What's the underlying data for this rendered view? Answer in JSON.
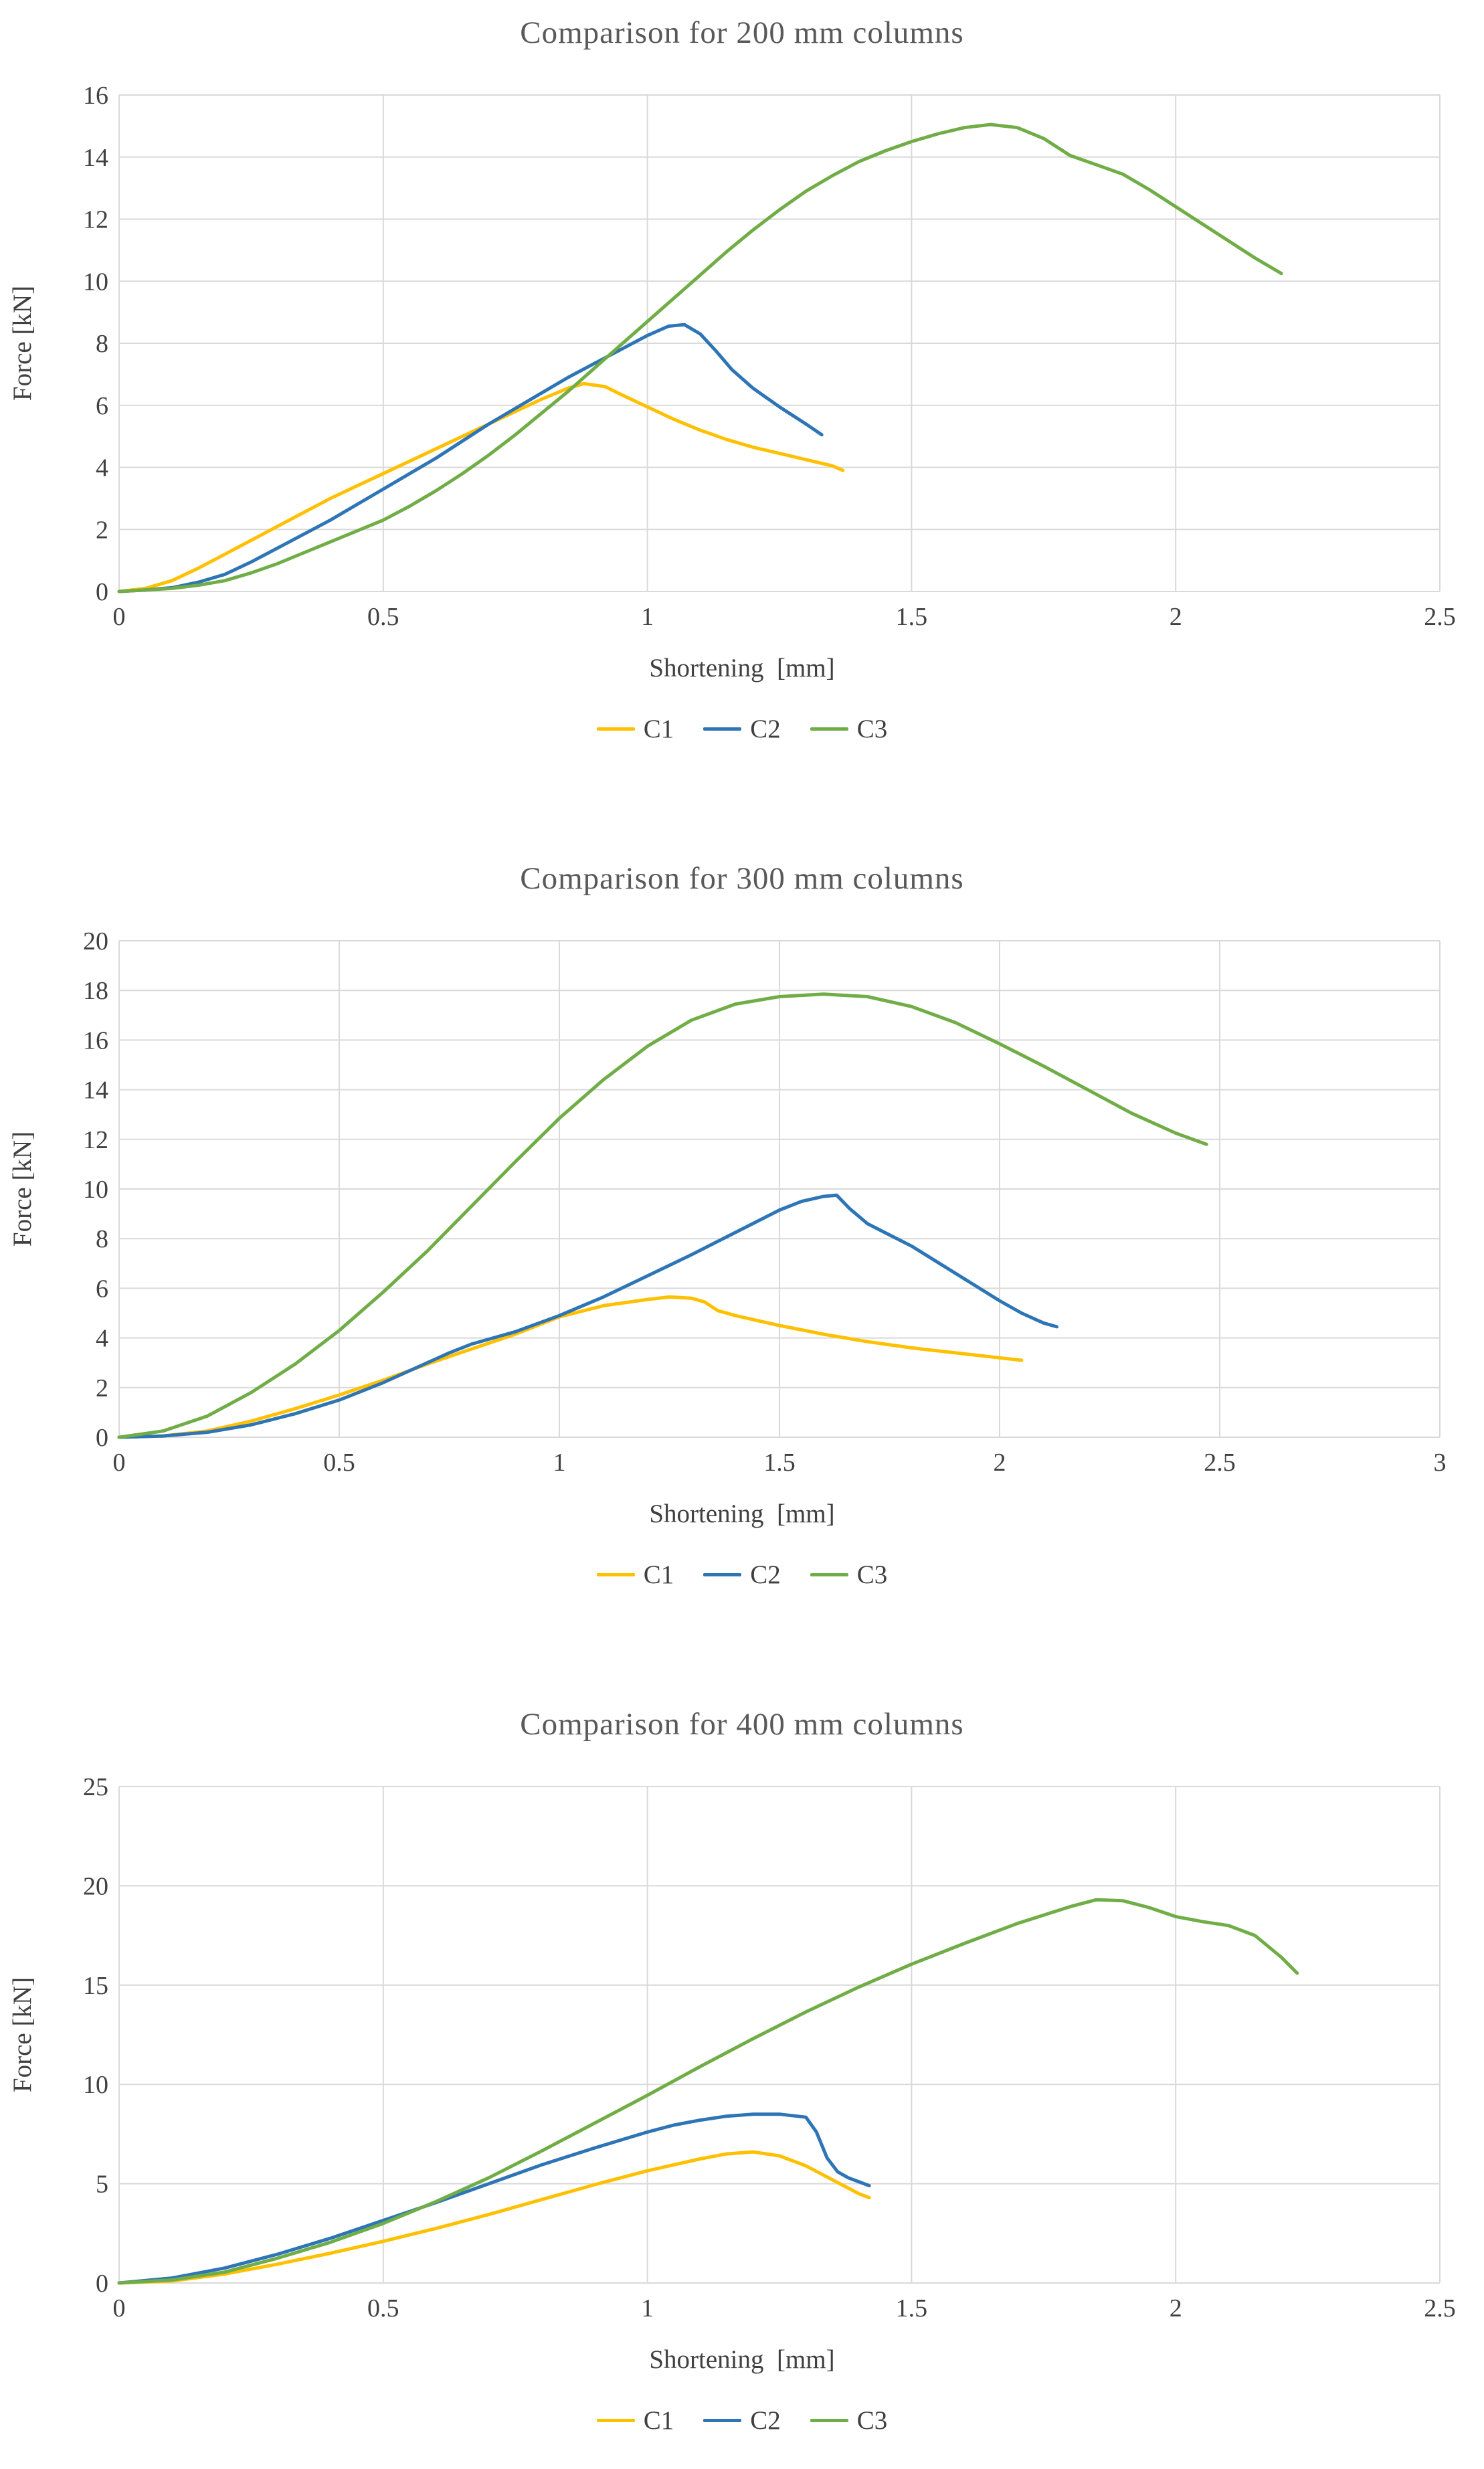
{
  "colors": {
    "grid": "#D9D9D9",
    "title_text": "#595959",
    "axis_text": "#404040",
    "c1": "#FFC000",
    "c2": "#2E75B6",
    "c3": "#70AD47"
  },
  "chart_data": [
    {
      "type": "line",
      "title": "Comparison for 200 mm columns",
      "xlabel": "Shortening  [mm]",
      "ylabel": "Force [kN]",
      "xlim": [
        0,
        2.5
      ],
      "ylim": [
        0,
        16
      ],
      "xticks": [
        0,
        0.5,
        1,
        1.5,
        2,
        2.5
      ],
      "yticks": [
        0,
        2,
        4,
        6,
        8,
        10,
        12,
        14,
        16
      ],
      "grid": true,
      "legend_position": "bottom",
      "series": [
        {
          "name": "C1",
          "color": "#FFC000",
          "points": [
            [
              0,
              0
            ],
            [
              0.05,
              0.1
            ],
            [
              0.1,
              0.35
            ],
            [
              0.15,
              0.75
            ],
            [
              0.2,
              1.2
            ],
            [
              0.25,
              1.65
            ],
            [
              0.3,
              2.1
            ],
            [
              0.35,
              2.55
            ],
            [
              0.4,
              3
            ],
            [
              0.45,
              3.4
            ],
            [
              0.5,
              3.8
            ],
            [
              0.55,
              4.2
            ],
            [
              0.6,
              4.6
            ],
            [
              0.65,
              5
            ],
            [
              0.7,
              5.4
            ],
            [
              0.75,
              5.8
            ],
            [
              0.8,
              6.2
            ],
            [
              0.85,
              6.55
            ],
            [
              0.88,
              6.7
            ],
            [
              0.92,
              6.6
            ],
            [
              0.95,
              6.35
            ],
            [
              1,
              5.95
            ],
            [
              1.05,
              5.55
            ],
            [
              1.1,
              5.2
            ],
            [
              1.15,
              4.9
            ],
            [
              1.2,
              4.65
            ],
            [
              1.25,
              4.45
            ],
            [
              1.3,
              4.25
            ],
            [
              1.35,
              4.05
            ],
            [
              1.37,
              3.9
            ]
          ]
        },
        {
          "name": "C2",
          "color": "#2E75B6",
          "points": [
            [
              0,
              0
            ],
            [
              0.05,
              0.05
            ],
            [
              0.1,
              0.12
            ],
            [
              0.15,
              0.3
            ],
            [
              0.2,
              0.55
            ],
            [
              0.25,
              0.95
            ],
            [
              0.3,
              1.4
            ],
            [
              0.35,
              1.85
            ],
            [
              0.4,
              2.3
            ],
            [
              0.45,
              2.8
            ],
            [
              0.5,
              3.3
            ],
            [
              0.55,
              3.8
            ],
            [
              0.6,
              4.3
            ],
            [
              0.65,
              4.85
            ],
            [
              0.7,
              5.4
            ],
            [
              0.75,
              5.9
            ],
            [
              0.8,
              6.4
            ],
            [
              0.85,
              6.9
            ],
            [
              0.9,
              7.35
            ],
            [
              0.95,
              7.8
            ],
            [
              1,
              8.25
            ],
            [
              1.04,
              8.55
            ],
            [
              1.07,
              8.6
            ],
            [
              1.1,
              8.3
            ],
            [
              1.13,
              7.75
            ],
            [
              1.16,
              7.15
            ],
            [
              1.2,
              6.55
            ],
            [
              1.25,
              5.95
            ],
            [
              1.3,
              5.4
            ],
            [
              1.33,
              5.05
            ]
          ]
        },
        {
          "name": "C3",
          "color": "#70AD47",
          "points": [
            [
              0,
              0
            ],
            [
              0.1,
              0.1
            ],
            [
              0.15,
              0.2
            ],
            [
              0.2,
              0.35
            ],
            [
              0.25,
              0.6
            ],
            [
              0.3,
              0.9
            ],
            [
              0.35,
              1.25
            ],
            [
              0.4,
              1.6
            ],
            [
              0.45,
              1.95
            ],
            [
              0.5,
              2.3
            ],
            [
              0.55,
              2.75
            ],
            [
              0.6,
              3.25
            ],
            [
              0.65,
              3.8
            ],
            [
              0.7,
              4.4
            ],
            [
              0.75,
              5.05
            ],
            [
              0.8,
              5.75
            ],
            [
              0.85,
              6.45
            ],
            [
              0.9,
              7.2
            ],
            [
              0.95,
              7.95
            ],
            [
              1,
              8.7
            ],
            [
              1.05,
              9.45
            ],
            [
              1.1,
              10.2
            ],
            [
              1.15,
              10.95
            ],
            [
              1.2,
              11.65
            ],
            [
              1.25,
              12.3
            ],
            [
              1.3,
              12.9
            ],
            [
              1.35,
              13.4
            ],
            [
              1.4,
              13.85
            ],
            [
              1.45,
              14.2
            ],
            [
              1.5,
              14.5
            ],
            [
              1.55,
              14.75
            ],
            [
              1.6,
              14.95
            ],
            [
              1.65,
              15.05
            ],
            [
              1.7,
              14.95
            ],
            [
              1.75,
              14.6
            ],
            [
              1.8,
              14.05
            ],
            [
              1.85,
              13.75
            ],
            [
              1.9,
              13.45
            ],
            [
              1.95,
              12.95
            ],
            [
              2,
              12.4
            ],
            [
              2.05,
              11.85
            ],
            [
              2.1,
              11.3
            ],
            [
              2.15,
              10.75
            ],
            [
              2.2,
              10.25
            ]
          ]
        }
      ]
    },
    {
      "type": "line",
      "title": "Comparison for 300 mm columns",
      "xlabel": "Shortening  [mm]",
      "ylabel": "Force [kN]",
      "xlim": [
        0,
        3
      ],
      "ylim": [
        0,
        20
      ],
      "xticks": [
        0,
        0.5,
        1,
        1.5,
        2,
        2.5,
        3
      ],
      "yticks": [
        0,
        2,
        4,
        6,
        8,
        10,
        12,
        14,
        16,
        18,
        20
      ],
      "grid": true,
      "legend_position": "bottom",
      "series": [
        {
          "name": "C1",
          "color": "#FFC000",
          "points": [
            [
              0,
              0
            ],
            [
              0.1,
              0.05
            ],
            [
              0.2,
              0.25
            ],
            [
              0.3,
              0.65
            ],
            [
              0.4,
              1.15
            ],
            [
              0.5,
              1.7
            ],
            [
              0.6,
              2.3
            ],
            [
              0.7,
              2.95
            ],
            [
              0.8,
              3.55
            ],
            [
              0.9,
              4.15
            ],
            [
              1,
              4.85
            ],
            [
              1.1,
              5.3
            ],
            [
              1.2,
              5.55
            ],
            [
              1.25,
              5.65
            ],
            [
              1.3,
              5.6
            ],
            [
              1.33,
              5.45
            ],
            [
              1.36,
              5.1
            ],
            [
              1.4,
              4.9
            ],
            [
              1.5,
              4.5
            ],
            [
              1.6,
              4.15
            ],
            [
              1.7,
              3.85
            ],
            [
              1.8,
              3.6
            ],
            [
              1.9,
              3.4
            ],
            [
              2,
              3.2
            ],
            [
              2.05,
              3.1
            ]
          ]
        },
        {
          "name": "C2",
          "color": "#2E75B6",
          "points": [
            [
              0,
              0
            ],
            [
              0.1,
              0.05
            ],
            [
              0.2,
              0.2
            ],
            [
              0.3,
              0.5
            ],
            [
              0.4,
              0.95
            ],
            [
              0.5,
              1.5
            ],
            [
              0.6,
              2.2
            ],
            [
              0.7,
              3
            ],
            [
              0.75,
              3.4
            ],
            [
              0.8,
              3.75
            ],
            [
              0.9,
              4.25
            ],
            [
              1,
              4.9
            ],
            [
              1.1,
              5.65
            ],
            [
              1.2,
              6.5
            ],
            [
              1.3,
              7.35
            ],
            [
              1.4,
              8.25
            ],
            [
              1.5,
              9.15
            ],
            [
              1.55,
              9.5
            ],
            [
              1.6,
              9.7
            ],
            [
              1.63,
              9.75
            ],
            [
              1.66,
              9.2
            ],
            [
              1.7,
              8.6
            ],
            [
              1.75,
              8.15
            ],
            [
              1.8,
              7.7
            ],
            [
              1.9,
              6.6
            ],
            [
              2,
              5.5
            ],
            [
              2.05,
              5
            ],
            [
              2.1,
              4.6
            ],
            [
              2.13,
              4.45
            ]
          ]
        },
        {
          "name": "C3",
          "color": "#70AD47",
          "points": [
            [
              0,
              0
            ],
            [
              0.1,
              0.25
            ],
            [
              0.2,
              0.85
            ],
            [
              0.3,
              1.8
            ],
            [
              0.4,
              2.95
            ],
            [
              0.5,
              4.3
            ],
            [
              0.6,
              5.85
            ],
            [
              0.7,
              7.5
            ],
            [
              0.8,
              9.3
            ],
            [
              0.9,
              11.1
            ],
            [
              1,
              12.85
            ],
            [
              1.1,
              14.4
            ],
            [
              1.2,
              15.75
            ],
            [
              1.3,
              16.8
            ],
            [
              1.4,
              17.45
            ],
            [
              1.5,
              17.75
            ],
            [
              1.6,
              17.85
            ],
            [
              1.7,
              17.75
            ],
            [
              1.8,
              17.35
            ],
            [
              1.9,
              16.7
            ],
            [
              2,
              15.85
            ],
            [
              2.1,
              14.95
            ],
            [
              2.2,
              14
            ],
            [
              2.3,
              13.05
            ],
            [
              2.4,
              12.25
            ],
            [
              2.47,
              11.8
            ]
          ]
        }
      ]
    },
    {
      "type": "line",
      "title": "Comparison for 400 mm columns",
      "xlabel": "Shortening  [mm]",
      "ylabel": "Force [kN]",
      "xlim": [
        0,
        2.5
      ],
      "ylim": [
        0,
        25
      ],
      "xticks": [
        0,
        0.5,
        1,
        1.5,
        2,
        2.5
      ],
      "yticks": [
        0,
        5,
        10,
        15,
        20,
        25
      ],
      "grid": true,
      "legend_position": "bottom",
      "series": [
        {
          "name": "C1",
          "color": "#FFC000",
          "points": [
            [
              0,
              0
            ],
            [
              0.1,
              0.1
            ],
            [
              0.2,
              0.45
            ],
            [
              0.3,
              0.95
            ],
            [
              0.4,
              1.5
            ],
            [
              0.5,
              2.1
            ],
            [
              0.6,
              2.75
            ],
            [
              0.7,
              3.45
            ],
            [
              0.8,
              4.2
            ],
            [
              0.9,
              4.95
            ],
            [
              1,
              5.65
            ],
            [
              1.1,
              6.25
            ],
            [
              1.15,
              6.5
            ],
            [
              1.2,
              6.6
            ],
            [
              1.25,
              6.4
            ],
            [
              1.3,
              5.9
            ],
            [
              1.35,
              5.2
            ],
            [
              1.4,
              4.5
            ],
            [
              1.42,
              4.3
            ]
          ]
        },
        {
          "name": "C2",
          "color": "#2E75B6",
          "points": [
            [
              0,
              0
            ],
            [
              0.1,
              0.25
            ],
            [
              0.2,
              0.75
            ],
            [
              0.3,
              1.45
            ],
            [
              0.4,
              2.25
            ],
            [
              0.5,
              3.15
            ],
            [
              0.6,
              4.05
            ],
            [
              0.7,
              5
            ],
            [
              0.8,
              5.95
            ],
            [
              0.9,
              6.8
            ],
            [
              1,
              7.6
            ],
            [
              1.05,
              7.95
            ],
            [
              1.1,
              8.2
            ],
            [
              1.15,
              8.4
            ],
            [
              1.2,
              8.5
            ],
            [
              1.25,
              8.5
            ],
            [
              1.3,
              8.35
            ],
            [
              1.32,
              7.6
            ],
            [
              1.34,
              6.3
            ],
            [
              1.36,
              5.6
            ],
            [
              1.38,
              5.3
            ],
            [
              1.4,
              5.1
            ],
            [
              1.42,
              4.9
            ]
          ]
        },
        {
          "name": "C3",
          "color": "#70AD47",
          "points": [
            [
              0,
              0
            ],
            [
              0.1,
              0.15
            ],
            [
              0.2,
              0.55
            ],
            [
              0.3,
              1.25
            ],
            [
              0.4,
              2.05
            ],
            [
              0.5,
              3
            ],
            [
              0.6,
              4.1
            ],
            [
              0.7,
              5.3
            ],
            [
              0.8,
              6.65
            ],
            [
              0.9,
              8.05
            ],
            [
              1,
              9.45
            ],
            [
              1.1,
              10.9
            ],
            [
              1.2,
              12.3
            ],
            [
              1.3,
              13.65
            ],
            [
              1.4,
              14.9
            ],
            [
              1.5,
              16.05
            ],
            [
              1.6,
              17.1
            ],
            [
              1.7,
              18.1
            ],
            [
              1.8,
              18.95
            ],
            [
              1.85,
              19.3
            ],
            [
              1.9,
              19.25
            ],
            [
              1.95,
              18.9
            ],
            [
              2,
              18.45
            ],
            [
              2.05,
              18.2
            ],
            [
              2.1,
              18
            ],
            [
              2.15,
              17.5
            ],
            [
              2.2,
              16.4
            ],
            [
              2.23,
              15.6
            ]
          ]
        }
      ]
    }
  ]
}
